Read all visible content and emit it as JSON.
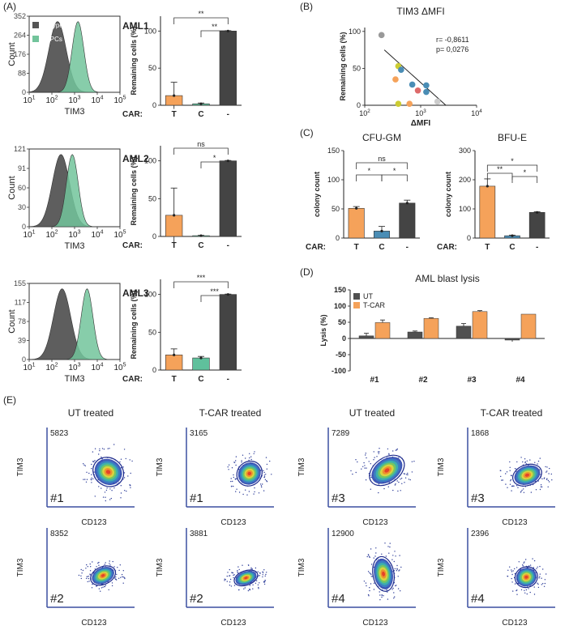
{
  "panel_labels": {
    "A": "(A)",
    "B": "(B)",
    "C": "(C)",
    "D": "(D)",
    "E": "(E)"
  },
  "labels": {
    "count": "Count",
    "tim3": "TIM3",
    "remaining": "Remaining cells (%)",
    "car": "CAR:",
    "colony": "colony count",
    "lysis": "Lysis (%)",
    "cd123": "CD123",
    "delta_mfi": "ΔMFI"
  },
  "legend_a": {
    "isotype": "Isotype ctrl",
    "lspc": "LSPCs"
  },
  "colors": {
    "isotype": "#555555",
    "lspc": "#72c49b",
    "orange": "#f5a25a",
    "blue": "#4a8db5",
    "teal": "#5fc09c",
    "dark": "#444444",
    "ut": "#505050",
    "tcar": "#f5a25a"
  },
  "histogram_ticks": {
    "x": [
      "10",
      "10",
      "10",
      "10",
      "10"
    ],
    "x_exp": [
      "1",
      "2",
      "3",
      "4",
      "5"
    ]
  },
  "chart_data": [
    {
      "type": "area",
      "title": "AML1",
      "yticks": [
        "352",
        "264",
        "176",
        "88",
        "0"
      ],
      "series": [
        {
          "name": "Isotype ctrl",
          "peak_log": 2.25
        },
        {
          "name": "LSPCs",
          "peak_log": 3.15
        }
      ]
    },
    {
      "type": "bar",
      "categories": [
        "T",
        "C",
        "-"
      ],
      "values": [
        13,
        2,
        100
      ],
      "errors": [
        18,
        1,
        0.5
      ],
      "yticks": [
        "0",
        "50",
        "100"
      ],
      "ylim": [
        0,
        120
      ],
      "ylabel": "Remaining cells (%)",
      "sig": [
        "**",
        "**"
      ]
    },
    {
      "type": "area",
      "title": "AML2",
      "yticks": [
        "121",
        "91",
        "60",
        "30",
        "0"
      ],
      "series": [
        {
          "name": "Isotype ctrl",
          "peak_log": 2.4
        },
        {
          "name": "LSPCs",
          "peak_log": 2.9
        }
      ]
    },
    {
      "type": "bar",
      "categories": [
        "T",
        "C",
        "-"
      ],
      "values": [
        28,
        1,
        100
      ],
      "errors": [
        36,
        0.5,
        0.5
      ],
      "yticks": [
        "0",
        "50",
        "100"
      ],
      "ylim": [
        0,
        120
      ],
      "ylabel": "Remaining cells (%)",
      "sig": [
        "ns",
        "*"
      ]
    },
    {
      "type": "area",
      "title": "AML3",
      "yticks": [
        "155",
        "117",
        "78",
        "39",
        "0"
      ],
      "series": [
        {
          "name": "Isotype ctrl",
          "peak_log": 2.45
        },
        {
          "name": "LSPCs",
          "peak_log": 3.55
        }
      ]
    },
    {
      "type": "bar",
      "categories": [
        "T",
        "C",
        "-"
      ],
      "values": [
        20,
        16,
        100
      ],
      "errors": [
        8,
        2,
        0.5
      ],
      "yticks": [
        "0",
        "50",
        "100"
      ],
      "ylim": [
        0,
        120
      ],
      "ylabel": "Remaining cells (%)",
      "sig": [
        "***",
        "***"
      ]
    },
    {
      "type": "scatter",
      "title": "TIM3 ΔMFI",
      "xlabel": "ΔMFI",
      "ylabel": "Remaining cells (%)",
      "xticks": [
        "10",
        "10",
        "10"
      ],
      "xticks_exp": [
        "2",
        "3",
        "4"
      ],
      "yticks": [
        "0",
        "50",
        "100"
      ],
      "annotation": [
        "r= -0,8611",
        "p= 0,0276"
      ],
      "points": [
        {
          "x": 2.3,
          "y": 95,
          "c": "#999999"
        },
        {
          "x": 2.6,
          "y": 53,
          "c": "#cccc33"
        },
        {
          "x": 2.65,
          "y": 48,
          "c": "#4a8db5"
        },
        {
          "x": 2.55,
          "y": 35,
          "c": "#f5a25a"
        },
        {
          "x": 2.85,
          "y": 28,
          "c": "#4a8db5"
        },
        {
          "x": 3.1,
          "y": 27,
          "c": "#4a8db5"
        },
        {
          "x": 3.1,
          "y": 18,
          "c": "#4a8db5"
        },
        {
          "x": 2.95,
          "y": 20,
          "c": "#dd6a6a"
        },
        {
          "x": 2.6,
          "y": 2,
          "c": "#cccc33"
        },
        {
          "x": 2.8,
          "y": 2,
          "c": "#f5a25a"
        },
        {
          "x": 3.3,
          "y": 5,
          "c": "#cccccc"
        }
      ],
      "fit": [
        [
          2.35,
          75
        ],
        [
          3.45,
          0
        ]
      ]
    },
    {
      "type": "bar",
      "title": "CFU-GM",
      "categories": [
        "T",
        "C",
        "-"
      ],
      "values": [
        51,
        12,
        60
      ],
      "errors": [
        3,
        8,
        5
      ],
      "yticks": [
        "0",
        "50",
        "100",
        "150"
      ],
      "ylim": [
        0,
        150
      ],
      "ylabel": "colony count",
      "sig": [
        "*",
        "*",
        "ns"
      ]
    },
    {
      "type": "bar",
      "title": "BFU-E",
      "categories": [
        "T",
        "C",
        "-"
      ],
      "values": [
        178,
        8,
        88
      ],
      "errors": [
        25,
        2,
        2
      ],
      "yticks": [
        "0",
        "100",
        "200",
        "300"
      ],
      "ylim": [
        0,
        300
      ],
      "ylabel": "colony count",
      "sig": [
        "**",
        "*",
        "*"
      ]
    },
    {
      "type": "bar",
      "title": "AML blast lysis",
      "categories": [
        "#1",
        "#2",
        "#3",
        "#4"
      ],
      "ylim": [
        -100,
        150
      ],
      "yticks": [
        "150",
        "100",
        "50",
        "0",
        "-50",
        "-100"
      ],
      "ylabel": "Lysis (%)",
      "series": [
        {
          "name": "UT",
          "values": [
            8,
            20,
            38,
            -5
          ],
          "errors": [
            8,
            3,
            8,
            5
          ]
        },
        {
          "name": "T-CAR",
          "values": [
            49,
            62,
            83,
            75
          ],
          "errors": [
            8,
            2,
            3,
            0
          ]
        }
      ]
    },
    {
      "type": "heatmap",
      "title": "UT treated",
      "count": "5823",
      "sample": "#1",
      "cx": 0.7,
      "cy": 0.56,
      "rx": 0.16,
      "ry": 0.2,
      "rot": -55
    },
    {
      "type": "heatmap",
      "title": "T-CAR treated",
      "count": "3165",
      "sample": "#1",
      "cx": 0.72,
      "cy": 0.58,
      "rx": 0.15,
      "ry": 0.15,
      "rot": -40
    },
    {
      "type": "heatmap",
      "title": "UT treated",
      "count": "7289",
      "sample": "#3",
      "cx": 0.67,
      "cy": 0.54,
      "rx": 0.22,
      "ry": 0.16,
      "rot": -35
    },
    {
      "type": "heatmap",
      "title": "T-CAR treated",
      "count": "1868",
      "sample": "#3",
      "cx": 0.68,
      "cy": 0.6,
      "rx": 0.17,
      "ry": 0.13,
      "rot": -20
    },
    {
      "type": "heatmap",
      "title": "",
      "count": "8352",
      "sample": "#2",
      "cx": 0.64,
      "cy": 0.6,
      "rx": 0.15,
      "ry": 0.11,
      "rot": -25
    },
    {
      "type": "heatmap",
      "title": "",
      "count": "3881",
      "sample": "#2",
      "cx": 0.68,
      "cy": 0.63,
      "rx": 0.14,
      "ry": 0.09,
      "rot": -20
    },
    {
      "type": "heatmap",
      "title": "",
      "count": "12900",
      "sample": "#4",
      "cx": 0.63,
      "cy": 0.58,
      "rx": 0.12,
      "ry": 0.22,
      "rot": -10
    },
    {
      "type": "heatmap",
      "title": "",
      "count": "2396",
      "sample": "#4",
      "cx": 0.67,
      "cy": 0.62,
      "rx": 0.13,
      "ry": 0.13,
      "rot": -20
    }
  ]
}
